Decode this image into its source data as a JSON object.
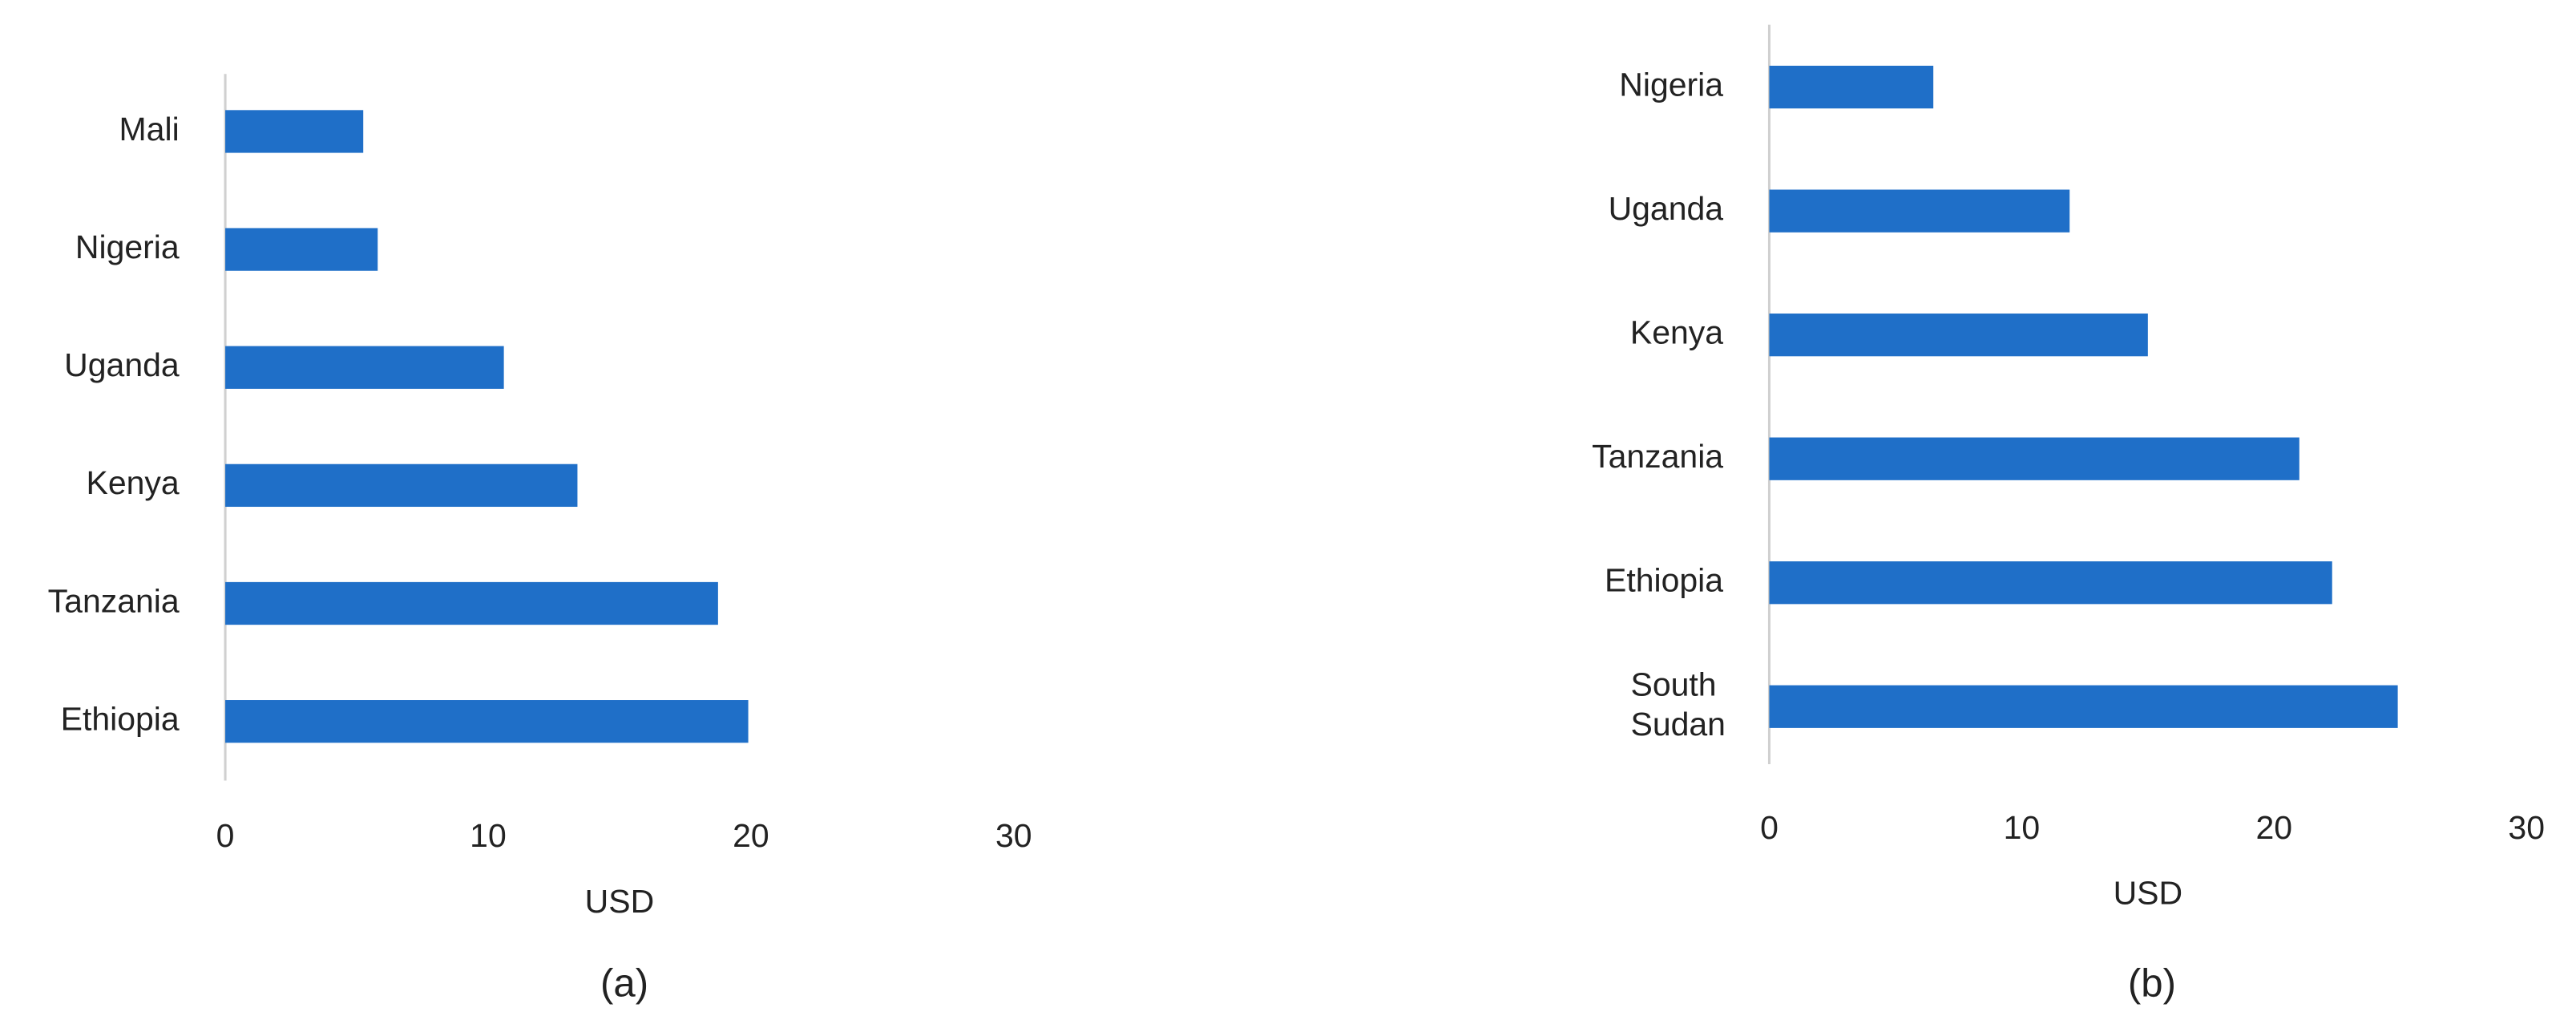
{
  "chart_data": [
    {
      "type": "bar",
      "orientation": "horizontal",
      "x_label": "USD",
      "caption": "(a)",
      "categories": [
        "Mali",
        "Nigeria",
        "Uganda",
        "Kenya",
        "Tanzania",
        "Ethiopia"
      ],
      "values": [
        5.25,
        5.8,
        10.6,
        13.4,
        18.75,
        19.9
      ],
      "color": "#1f6fc8",
      "xlim": [
        0,
        30
      ],
      "xticks": [
        0,
        10,
        20,
        30
      ],
      "grid": false
    },
    {
      "type": "bar",
      "orientation": "horizontal",
      "x_label": "USD",
      "caption": "(b)",
      "categories": [
        "Nigeria",
        "Uganda",
        "Kenya",
        "Tanzania",
        "Ethiopia",
        "South Sudan"
      ],
      "values": [
        6.5,
        11.9,
        15.0,
        21.0,
        22.3,
        24.9
      ],
      "color": "#1f6fc8",
      "xlim": [
        0,
        30
      ],
      "xticks": [
        0,
        10,
        20,
        30
      ],
      "grid": false
    }
  ]
}
